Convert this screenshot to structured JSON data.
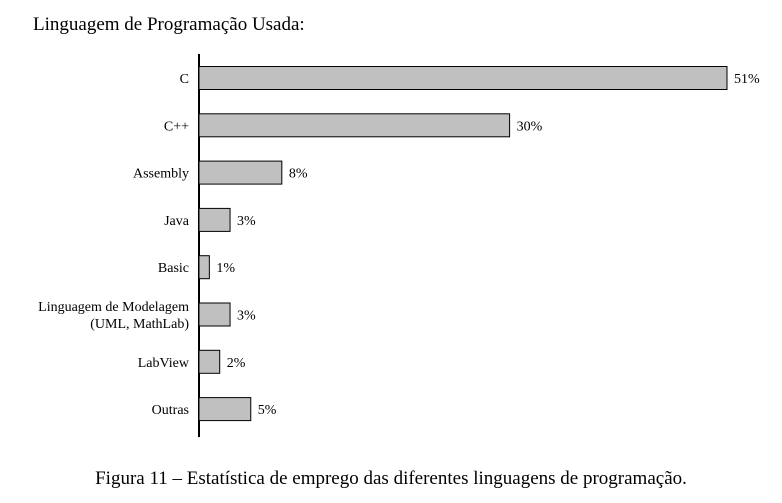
{
  "chart_data": {
    "type": "bar",
    "orientation": "horizontal",
    "title": "Linguagem de Programação Usada:",
    "categories": [
      [
        "C"
      ],
      [
        "C++"
      ],
      [
        "Assembly"
      ],
      [
        "Java"
      ],
      [
        "Basic"
      ],
      [
        "Linguagem de Modelagem",
        "(UML, MathLab)"
      ],
      [
        "LabView"
      ],
      [
        "Outras"
      ]
    ],
    "values": [
      51,
      30,
      8,
      3,
      1,
      3,
      2,
      5
    ],
    "data_labels": [
      "51%",
      "30%",
      "8%",
      "3%",
      "1%",
      "3%",
      "2%",
      "5%"
    ],
    "xlim": [
      0,
      51
    ],
    "grid": false,
    "legend": "none",
    "colors": {
      "bar_fill": "#c0c0c0",
      "bar_stroke": "#000000",
      "axis": "#000000"
    }
  },
  "caption": "Figura 11 – Estatística de emprego das diferentes linguagens de programação."
}
